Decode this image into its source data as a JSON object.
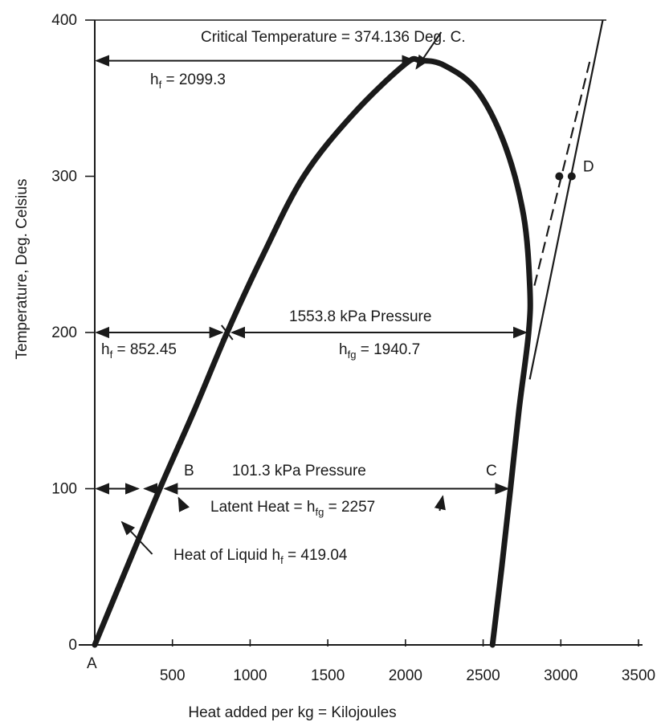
{
  "chart_data": {
    "type": "line",
    "title": "",
    "xlabel": "Heat added per kg = Kilojoules",
    "ylabel": "Temperature, Deg. Celsius",
    "xlim": [
      0,
      3500
    ],
    "ylim": [
      0,
      400
    ],
    "grid": false,
    "x_ticks": [
      {
        "value": 500,
        "label": "500"
      },
      {
        "value": 1000,
        "label": "1000"
      },
      {
        "value": 1500,
        "label": "1500"
      },
      {
        "value": 2000,
        "label": "2000"
      },
      {
        "value": 2500,
        "label": "2500"
      },
      {
        "value": 3000,
        "label": "3000"
      },
      {
        "value": 3500,
        "label": "3500"
      }
    ],
    "y_ticks": [
      {
        "value": 0,
        "label": "0"
      },
      {
        "value": 100,
        "label": "100"
      },
      {
        "value": 200,
        "label": "200"
      },
      {
        "value": 300,
        "label": "300"
      },
      {
        "value": 400,
        "label": "400"
      }
    ],
    "series": [
      {
        "style": "saturation-dome",
        "color": "#1a1a1a",
        "points": [
          {
            "x": 0,
            "y": 0
          },
          {
            "x": 200,
            "y": 48
          },
          {
            "x": 419,
            "y": 100
          },
          {
            "x": 640,
            "y": 150
          },
          {
            "x": 852,
            "y": 200
          },
          {
            "x": 1085,
            "y": 250
          },
          {
            "x": 1345,
            "y": 300
          },
          {
            "x": 1665,
            "y": 340
          },
          {
            "x": 2000,
            "y": 372
          },
          {
            "x": 2099,
            "y": 374
          },
          {
            "x": 2250,
            "y": 371
          },
          {
            "x": 2460,
            "y": 355
          },
          {
            "x": 2640,
            "y": 320
          },
          {
            "x": 2760,
            "y": 275
          },
          {
            "x": 2800,
            "y": 230
          },
          {
            "x": 2793,
            "y": 200
          },
          {
            "x": 2730,
            "y": 150
          },
          {
            "x": 2676,
            "y": 100
          },
          {
            "x": 2620,
            "y": 50
          },
          {
            "x": 2560,
            "y": 0
          }
        ]
      },
      {
        "style": "solid",
        "color": "#1a1a1a",
        "points": [
          {
            "x": 2800,
            "y": 170
          },
          {
            "x": 3270,
            "y": 400
          }
        ]
      },
      {
        "style": "dashed",
        "color": "#1a1a1a",
        "points": [
          {
            "x": 2830,
            "y": 230
          },
          {
            "x": 3190,
            "y": 375
          }
        ]
      }
    ],
    "points": [
      {
        "x": 2990,
        "y": 300
      },
      {
        "x": 3070,
        "y": 300,
        "label": "D"
      }
    ],
    "annotations": {
      "critical": "Critical Temperature = 374.136 Deg. C.",
      "hf_2099": {
        "main": "h",
        "sub": "f",
        "rest": " = 2099.3"
      },
      "pressure_1553": "1553.8 kPa Pressure",
      "hf_852": {
        "main": "h",
        "sub": "f",
        "rest": " = 852.45"
      },
      "hfg_1940": {
        "main": "h",
        "sub": "fg",
        "rest": " = 1940.7"
      },
      "pressure_101": "101.3 kPa Pressure",
      "latent": {
        "main": "Latent Heat = h",
        "sub": "fg",
        "rest": " = 2257"
      },
      "heat_liquid": {
        "main": "Heat of Liquid h",
        "sub": "f",
        "rest": " = 419.04"
      },
      "point_A": "A",
      "point_B": "B",
      "point_C": "C"
    }
  }
}
